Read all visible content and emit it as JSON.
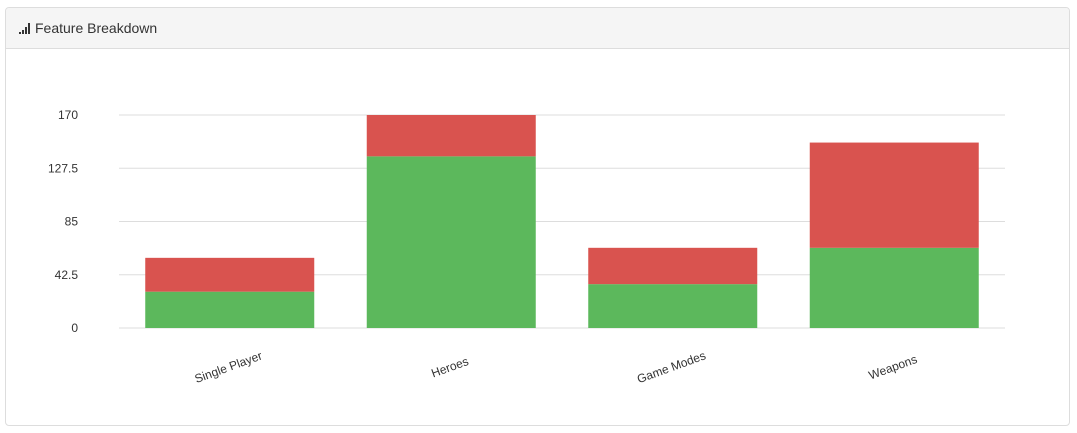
{
  "panel": {
    "title": "Feature Breakdown",
    "icon": "signal-icon"
  },
  "chart_data": {
    "type": "bar",
    "stacked": true,
    "categories": [
      "Single Player",
      "Heroes",
      "Game Modes",
      "Weapons"
    ],
    "series": [
      {
        "color": "#5cb85c",
        "values": [
          29,
          137,
          35,
          64
        ]
      },
      {
        "color": "#d9534f",
        "values": [
          27,
          33,
          29,
          84
        ]
      }
    ],
    "y_ticks": [
      "0",
      "42.5",
      "85",
      "127.5",
      "170"
    ],
    "ylim": [
      0,
      170
    ],
    "grid": true,
    "legend": "none",
    "xlabel": "",
    "ylabel": ""
  }
}
